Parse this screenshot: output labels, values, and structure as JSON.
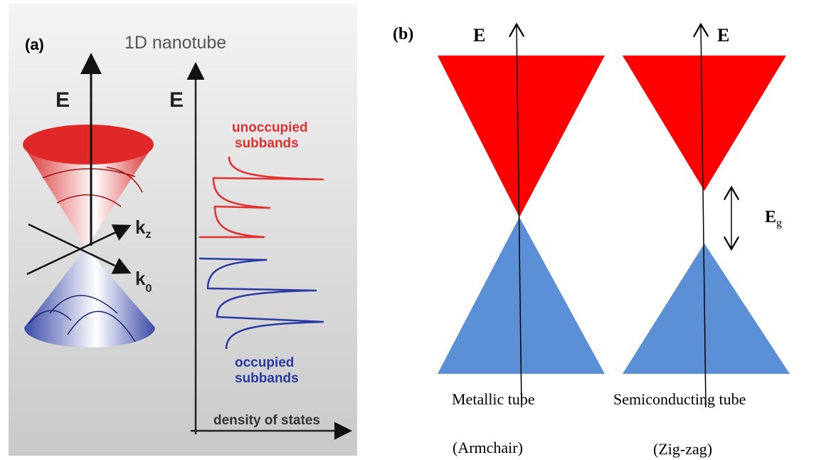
{
  "panel_a": {
    "label": "(a)",
    "title": "1D nanotube",
    "band_axis_label": "E",
    "kz": {
      "base": "k",
      "sub": "z"
    },
    "k0": {
      "base": "k",
      "sub": "0"
    },
    "dos_axis_label": "E",
    "unoccupied": [
      "unoccupied",
      "subbands"
    ],
    "occupied": [
      "occupied",
      "subbands"
    ],
    "x_axis_label": "density of states"
  },
  "panel_b": {
    "label": "(b)",
    "metallic": {
      "axis_label": "E",
      "caption": "Metallic tube",
      "kind": "(Armchair)"
    },
    "semiconducting": {
      "axis_label": "E",
      "gap_label": {
        "base": "E",
        "sub": "g"
      },
      "caption": "Semiconducting tube",
      "kind": "(Zig-zag)"
    }
  }
}
